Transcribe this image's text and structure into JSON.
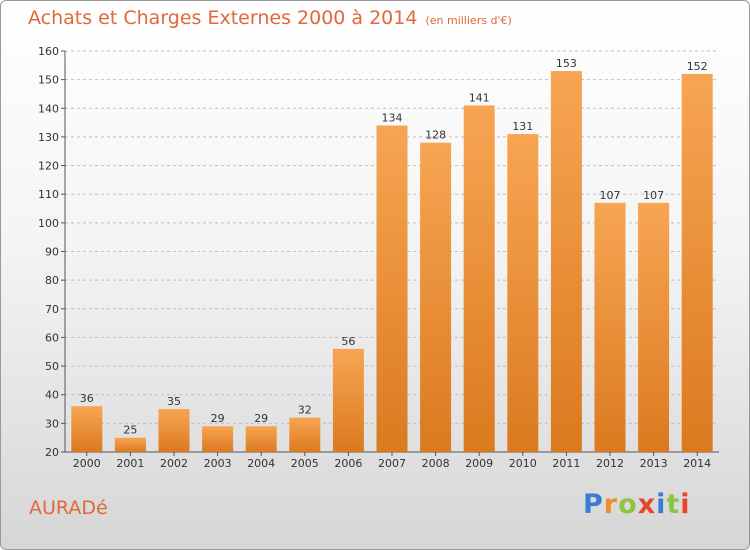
{
  "header": {
    "title": "Achats et Charges Externes 2000 à 2014",
    "unit": "(en milliers d'€)"
  },
  "footer": {
    "town": "AURADé",
    "brand": "Proxiti"
  },
  "colors": {
    "bar_top": "#f7a553",
    "bar_bottom": "#db7a1f",
    "title": "#e0683a",
    "grid": "#bfbfbf"
  },
  "chart_data": {
    "type": "bar",
    "title": "Achats et Charges Externes 2000 à 2014",
    "subtitle": "(en milliers d'€)",
    "categories": [
      "2000",
      "2001",
      "2002",
      "2003",
      "2004",
      "2005",
      "2006",
      "2007",
      "2008",
      "2009",
      "2010",
      "2011",
      "2012",
      "2013",
      "2014"
    ],
    "values": [
      36,
      25,
      35,
      29,
      29,
      32,
      56,
      134,
      128,
      141,
      131,
      153,
      107,
      107,
      152
    ],
    "ylim": [
      20,
      160
    ],
    "yticks": [
      20,
      30,
      40,
      50,
      60,
      70,
      80,
      90,
      100,
      110,
      120,
      130,
      140,
      150,
      160
    ],
    "grid": true,
    "grid_style": "dashed-horizontal",
    "data_labels": true
  }
}
